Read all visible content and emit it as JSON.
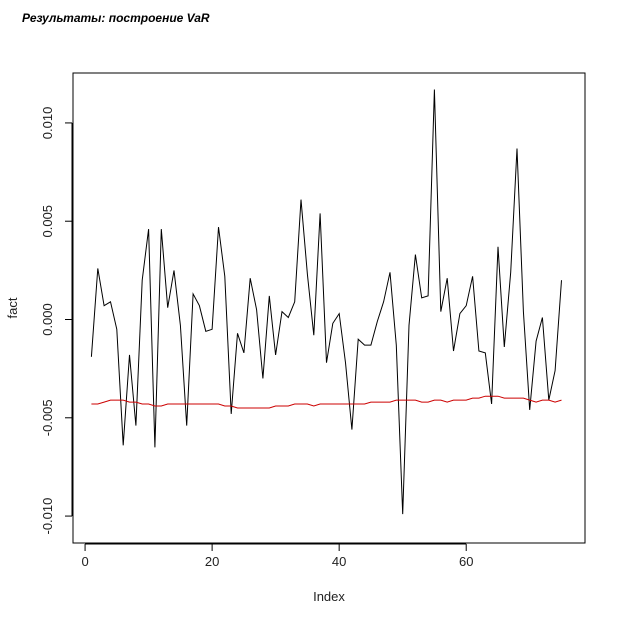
{
  "header": {
    "title": "Результаты: построение VaR"
  },
  "chart_data": {
    "type": "line",
    "title": "",
    "xlabel": "Index",
    "ylabel": "fact",
    "xlim": [
      -1.9,
      78.7
    ],
    "ylim": [
      -0.01137,
      0.01254
    ],
    "xticks": [
      0,
      20,
      40,
      60
    ],
    "xtick_labels": [
      "0",
      "20",
      "40",
      "60"
    ],
    "yticks": [
      -0.01,
      -0.005,
      0,
      0.005,
      0.01
    ],
    "ytick_labels": [
      "-0.010",
      "-0.005",
      "0.000",
      "0.005",
      "0.010"
    ],
    "grid": false,
    "series": [
      {
        "name": "fact",
        "color": "#000000",
        "values": [
          -0.0019,
          0.0026,
          0.0007,
          0.0009,
          -0.0005,
          -0.0064,
          -0.0018,
          -0.0054,
          0.002,
          0.0046,
          -0.0065,
          0.0046,
          0.0006,
          0.0025,
          -0.0003,
          -0.0054,
          0.0013,
          0.0007,
          -0.0006,
          -0.0005,
          0.0047,
          0.0022,
          -0.0048,
          -0.0007,
          -0.0017,
          0.0021,
          0.0005,
          -0.003,
          0.0012,
          -0.0018,
          0.0004,
          0.0001,
          0.0009,
          0.0061,
          0.0023,
          -0.0008,
          0.0054,
          -0.0022,
          -0.0002,
          0.0003,
          -0.0022,
          -0.0056,
          -0.001,
          -0.0013,
          -0.0013,
          -0.0001,
          0.0009,
          0.0024,
          -0.0013,
          -0.0099,
          -0.0003,
          0.0033,
          0.0011,
          0.0012,
          0.0117,
          0.0004,
          0.0021,
          -0.0016,
          0.0003,
          0.0007,
          0.0022,
          -0.0016,
          -0.0017,
          -0.0043,
          0.0037,
          -0.0014,
          0.0024,
          0.0087,
          0.0004,
          -0.0046,
          -0.0011,
          0.0001,
          -0.0041,
          -0.0026,
          0.002
        ]
      },
      {
        "name": "VaR",
        "color": "#cc0000",
        "values": [
          -0.0043,
          -0.0043,
          -0.0042,
          -0.0041,
          -0.0041,
          -0.0041,
          -0.0042,
          -0.0042,
          -0.0043,
          -0.0043,
          -0.0044,
          -0.0044,
          -0.0043,
          -0.0043,
          -0.0043,
          -0.0043,
          -0.0043,
          -0.0043,
          -0.0043,
          -0.0043,
          -0.0043,
          -0.0044,
          -0.0044,
          -0.0045,
          -0.0045,
          -0.0045,
          -0.0045,
          -0.0045,
          -0.0045,
          -0.0044,
          -0.0044,
          -0.0044,
          -0.0043,
          -0.0043,
          -0.0043,
          -0.0044,
          -0.0043,
          -0.0043,
          -0.0043,
          -0.0043,
          -0.0043,
          -0.0043,
          -0.0043,
          -0.0043,
          -0.0042,
          -0.0042,
          -0.0042,
          -0.0042,
          -0.0041,
          -0.0041,
          -0.0041,
          -0.0041,
          -0.0042,
          -0.0042,
          -0.0041,
          -0.0041,
          -0.0042,
          -0.0041,
          -0.0041,
          -0.0041,
          -0.004,
          -0.004,
          -0.0039,
          -0.0039,
          -0.0039,
          -0.004,
          -0.004,
          -0.004,
          -0.004,
          -0.0041,
          -0.0042,
          -0.0041,
          -0.0041,
          -0.0042,
          -0.0041
        ]
      }
    ]
  }
}
